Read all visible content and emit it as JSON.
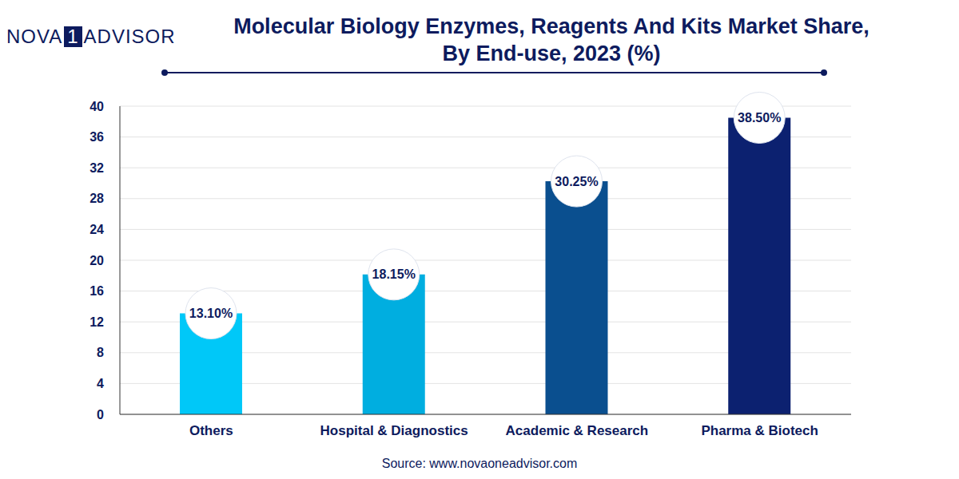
{
  "chart_data": {
    "type": "bar",
    "title": "Molecular Biology Enzymes, Reagents And Kits Market Share, By End-use, 2023 (%)",
    "logo": [
      "NOVA",
      "1",
      "ADVISOR"
    ],
    "source": "Source: www.novaoneadvisor.com",
    "categories": [
      "Others",
      "Hospital & Diagnostics",
      "Academic & Research",
      "Pharma & Biotech"
    ],
    "values": [
      13.1,
      18.15,
      30.25,
      38.5
    ],
    "value_labels": [
      "13.10%",
      "18.15%",
      "30.25%",
      "38.50%"
    ],
    "colors": [
      "#00c8f8",
      "#00aee0",
      "#0a4f8f",
      "#0c2170"
    ],
    "ylim": [
      0,
      40
    ],
    "yticks": [
      0,
      4,
      8,
      12,
      16,
      20,
      24,
      28,
      32,
      36,
      40
    ],
    "grid": true,
    "data_labels": true
  }
}
